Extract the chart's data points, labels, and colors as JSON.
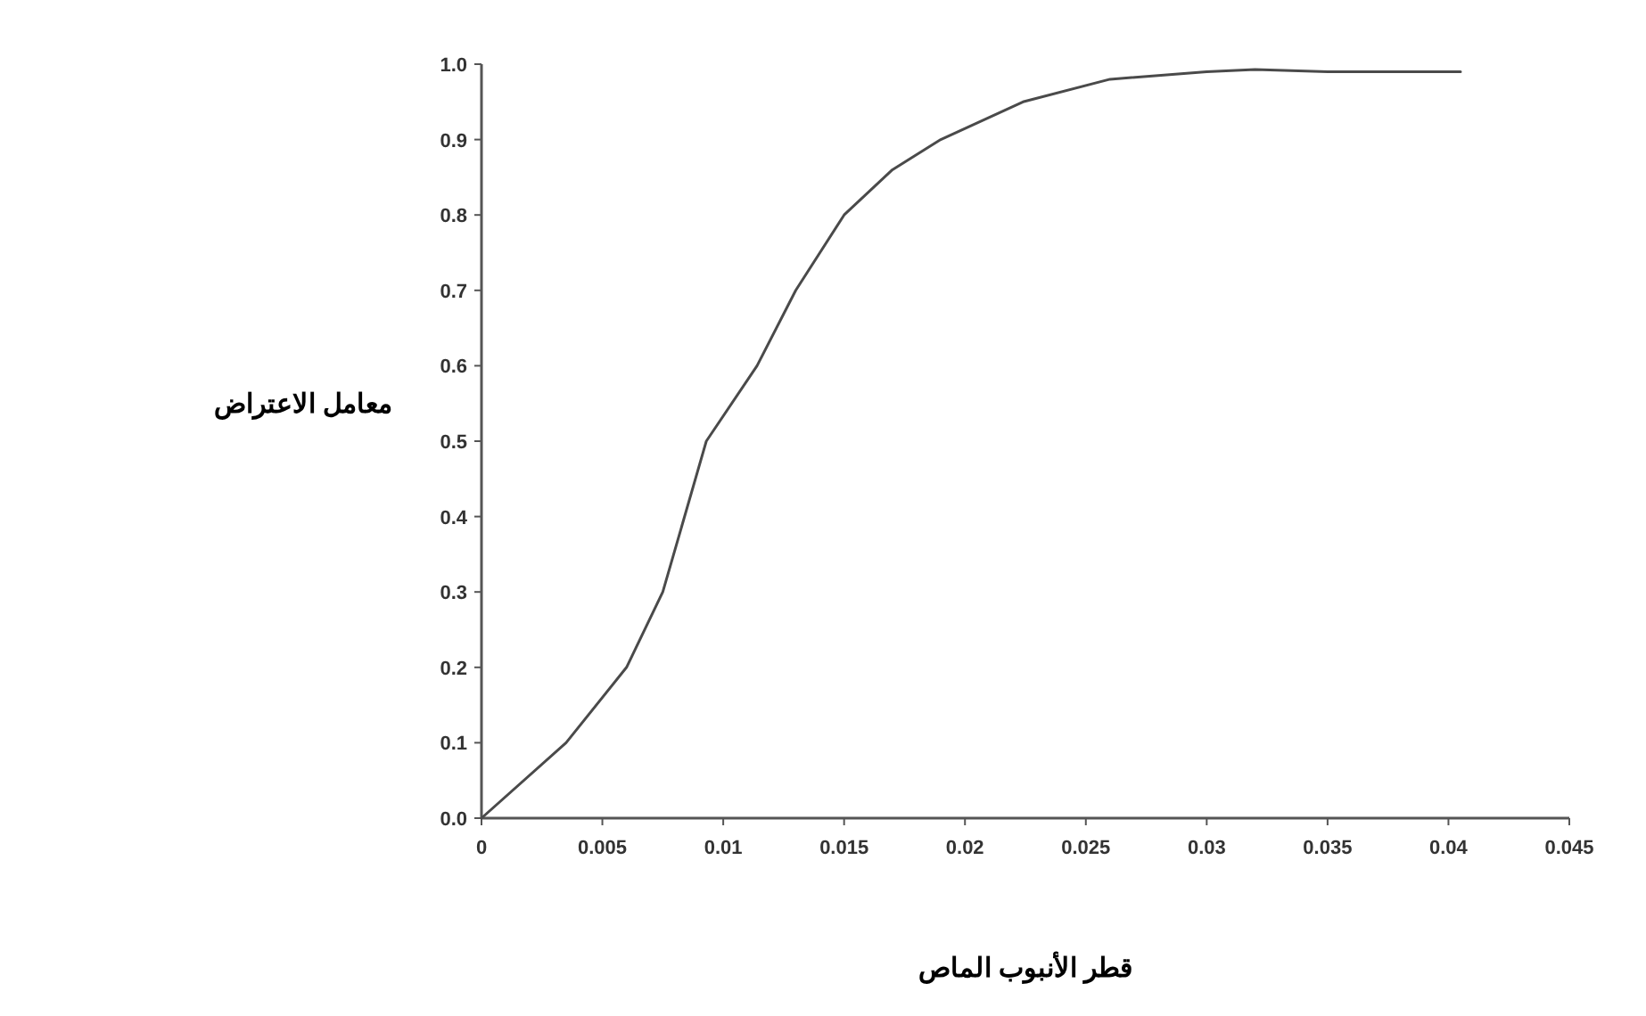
{
  "chart_data": {
    "type": "line",
    "xlabel": "قطر الأنبوب الماص",
    "ylabel": "معامل الاعتراض",
    "x": [
      0,
      0.0035,
      0.006,
      0.0075,
      0.0093,
      0.0114,
      0.013,
      0.015,
      0.017,
      0.019,
      0.0224,
      0.026,
      0.03,
      0.032,
      0.035,
      0.0405
    ],
    "series": [
      {
        "color": "#4a4a4a",
        "values": [
          0,
          0.1,
          0.2,
          0.3,
          0.5,
          0.6,
          0.7,
          0.8,
          0.86,
          0.9,
          0.95,
          0.98,
          0.99,
          0.993,
          0.99,
          0.99
        ]
      }
    ],
    "xlim": [
      0,
      0.045
    ],
    "ylim": [
      0,
      1
    ],
    "xticks": [
      0,
      0.005,
      0.01,
      0.015,
      0.02,
      0.025,
      0.03,
      0.035,
      0.04,
      0.045
    ],
    "yticks": [
      {
        "value": 0,
        "label": "0.0"
      },
      {
        "value": 0.1,
        "label": "0.1"
      },
      {
        "value": 0.2,
        "label": "0.2"
      },
      {
        "value": 0.3,
        "label": "0.3"
      },
      {
        "value": 0.4,
        "label": "0.4"
      },
      {
        "value": 0.5,
        "label": "0.5"
      },
      {
        "value": 0.6,
        "label": "0.6"
      },
      {
        "value": 0.7,
        "label": "0.7"
      },
      {
        "value": 0.8,
        "label": "0.8"
      },
      {
        "value": 0.9,
        "label": "0.9"
      },
      {
        "value": 1,
        "label": "1.0"
      }
    ],
    "line_style": "solid",
    "grid": false
  }
}
